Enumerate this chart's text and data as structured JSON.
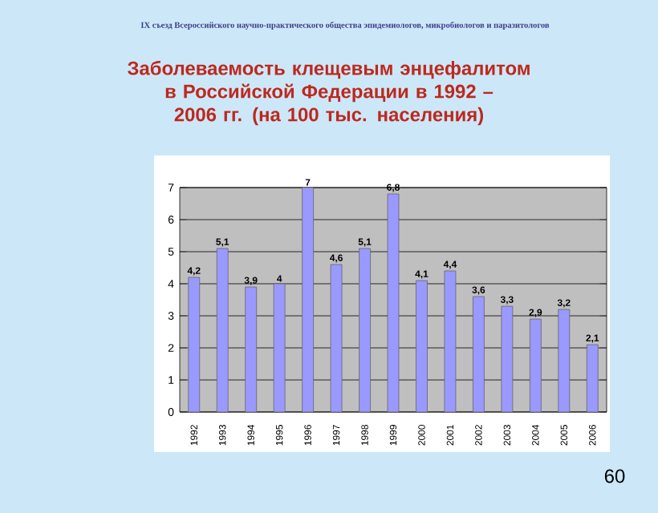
{
  "chart_data": {
    "type": "bar",
    "title": "Заболеваемость клещевым энцефалитом в Российской Федерации в 1992 – 2006 гг. (на 100 тыс. населения)",
    "annotations": [
      "IX съезд Всероссийского научно-практического общества эпидемиологов, микробиологов и паразитологов",
      "60"
    ],
    "categories": [
      "1992",
      "1993",
      "1994",
      "1995",
      "1996",
      "1997",
      "1998",
      "1999",
      "2000",
      "2001",
      "2002",
      "2003",
      "2004",
      "2005",
      "2006"
    ],
    "values": [
      4.2,
      5.1,
      3.9,
      4,
      7,
      4.6,
      5.1,
      6.8,
      4.1,
      4.4,
      3.6,
      3.3,
      2.9,
      3.2,
      2.1
    ],
    "value_labels": [
      "4,2",
      "5,1",
      "3,9",
      "4",
      "7",
      "4,6",
      "5,1",
      "6,8",
      "4,1",
      "4,4",
      "3,6",
      "3,3",
      "2,9",
      "3,2",
      "2,1"
    ],
    "color": "#9999ff",
    "ylim": [
      0,
      7
    ],
    "yticks": [
      0,
      1,
      2,
      3,
      4,
      5,
      6,
      7
    ],
    "grid": "y"
  }
}
